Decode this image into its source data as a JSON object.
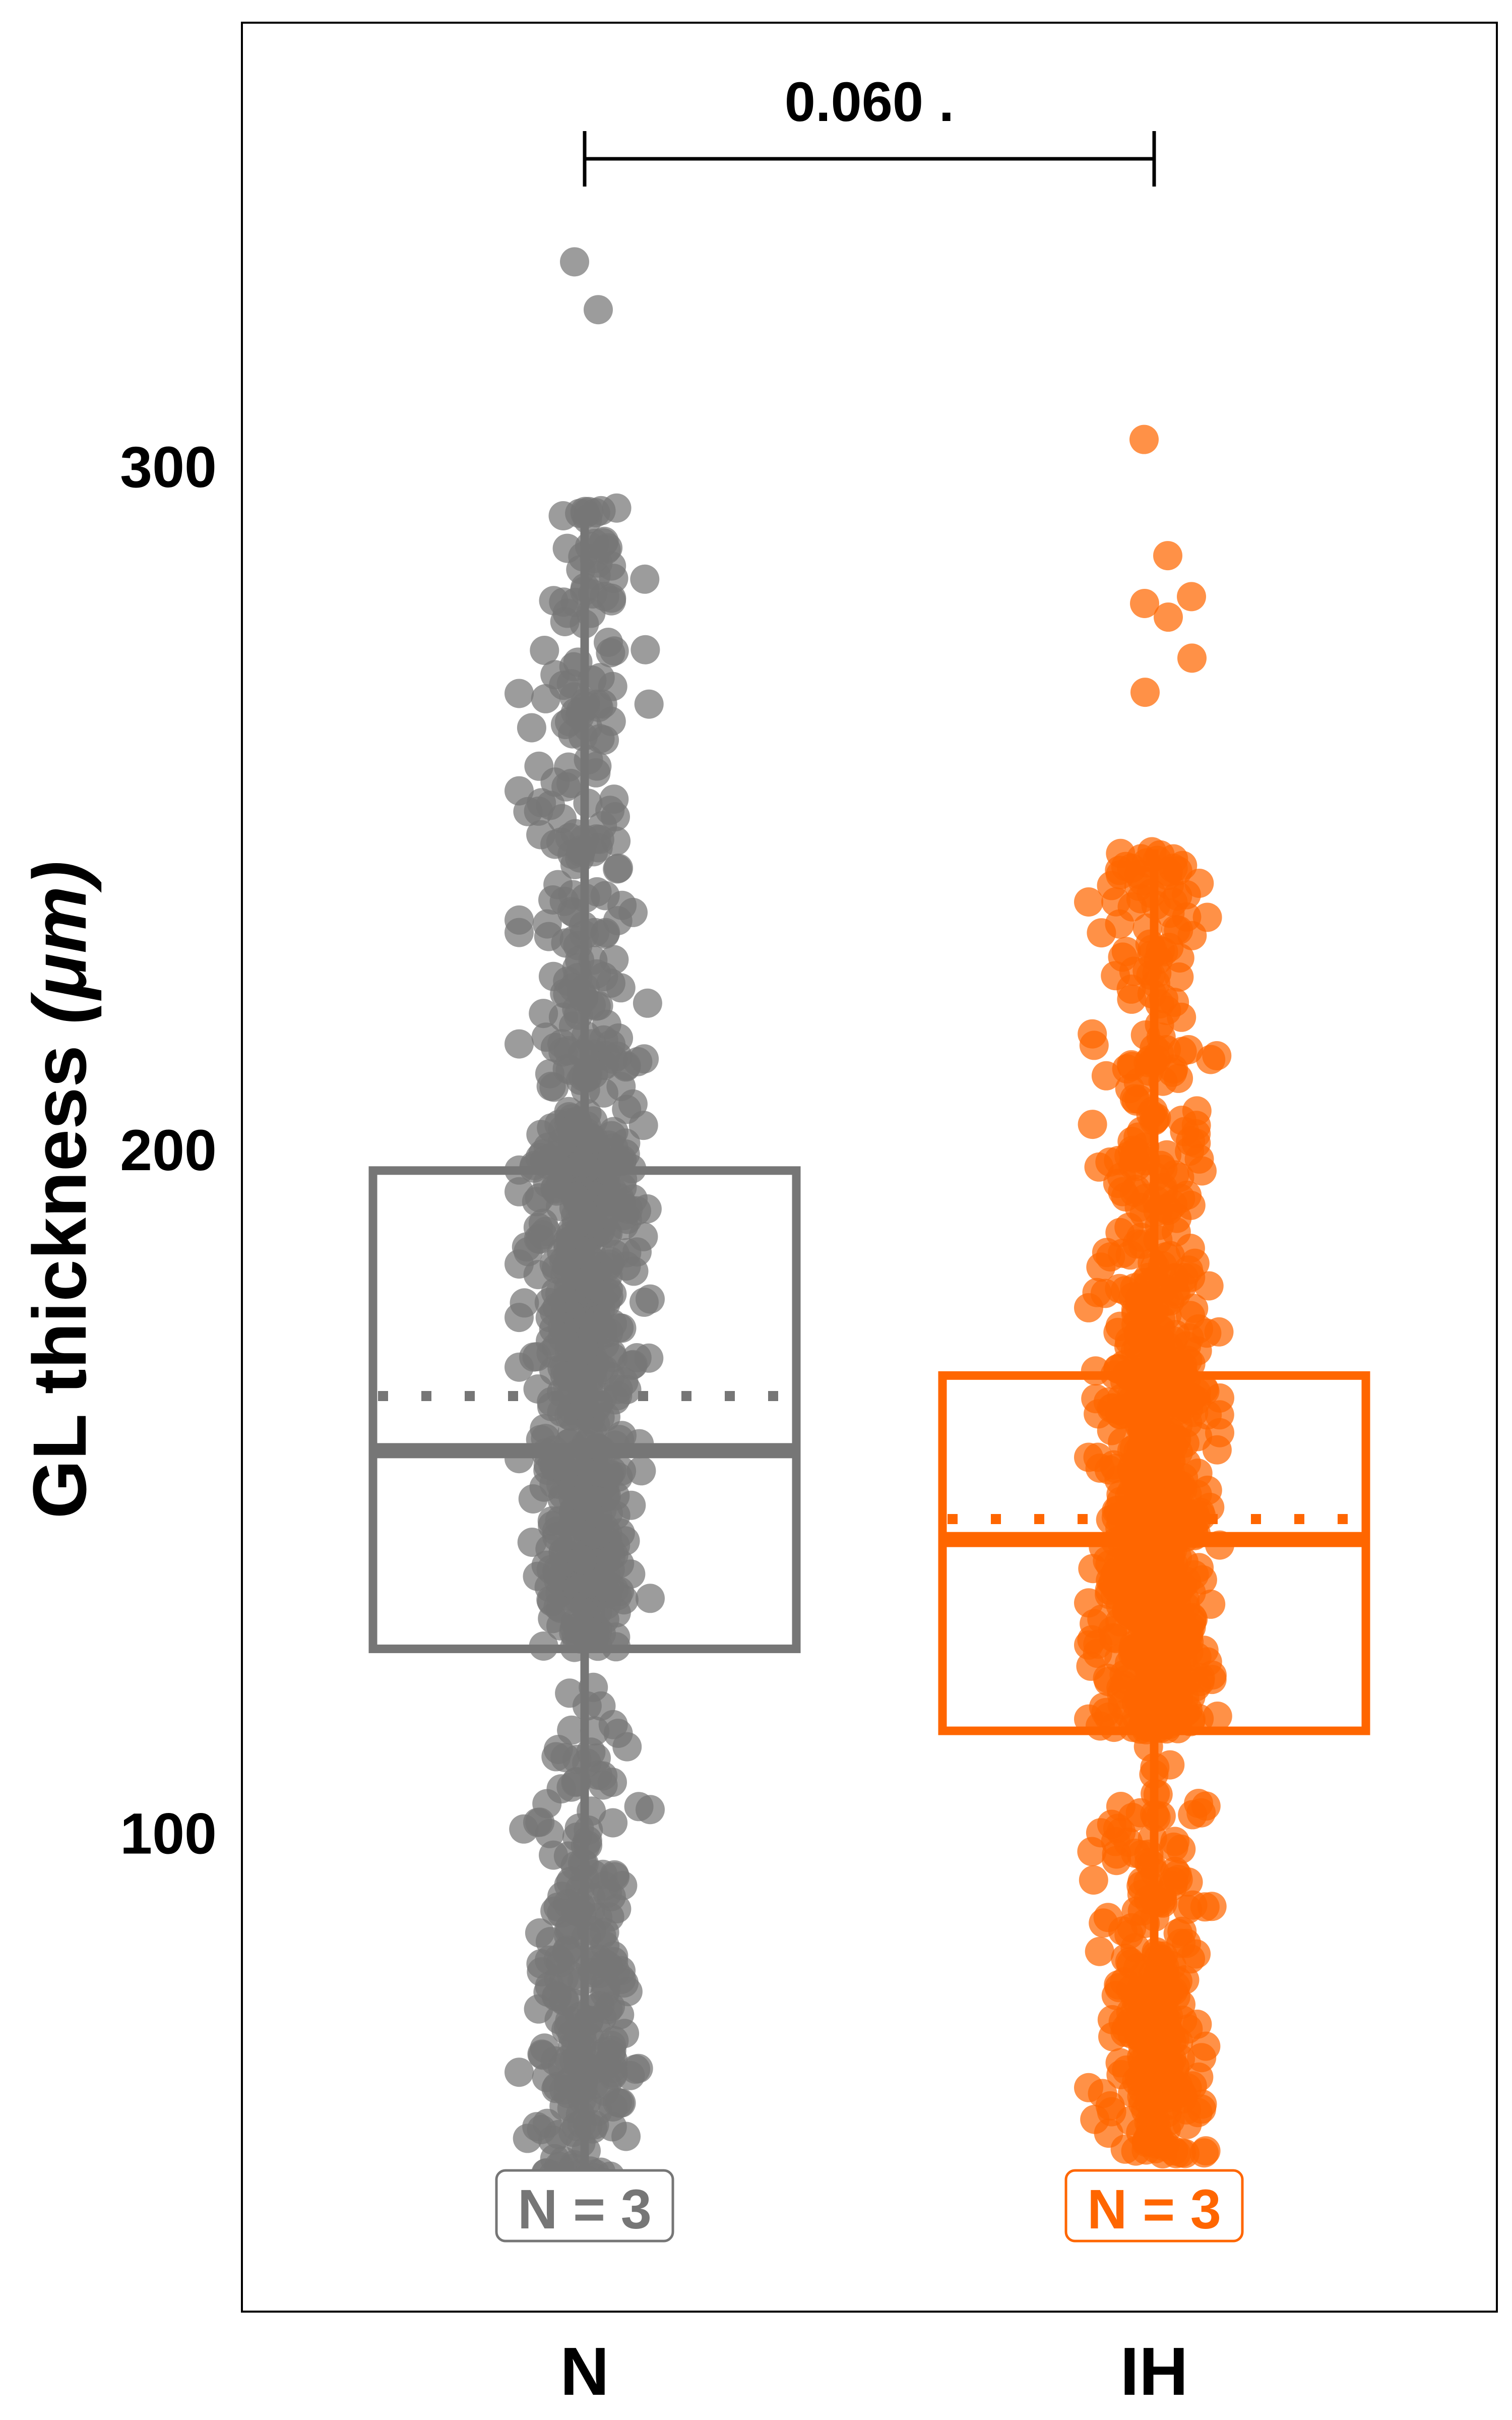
{
  "chart_data": {
    "type": "box",
    "ylabel": "GL thickness",
    "ylabel_unit": "(μm)",
    "xlabel": "",
    "ylim": [
      30,
      365
    ],
    "yticks": [
      100,
      200,
      300
    ],
    "categories": [
      "N",
      "IH"
    ],
    "significance": {
      "text": "0.060 .",
      "from": "N",
      "to": "IH"
    },
    "series": [
      {
        "name": "N",
        "color": "#767676",
        "n_label": "N = 3",
        "box": {
          "q1": 127,
          "median": 156,
          "q3": 197,
          "whisker_low": 44,
          "whisker_high": 294,
          "mean": 164
        },
        "outliers": [
          330,
          323
        ],
        "points_count": 1000
      },
      {
        "name": "IH",
        "color": "#ff6600",
        "n_label": "N = 3",
        "box": {
          "q1": 115,
          "median": 143,
          "q3": 167,
          "whisker_low": 53,
          "whisker_high": 244,
          "mean": 146
        },
        "outliers": [
          304,
          287,
          281,
          280,
          278,
          272,
          267
        ],
        "points_count": 1100
      }
    ]
  }
}
